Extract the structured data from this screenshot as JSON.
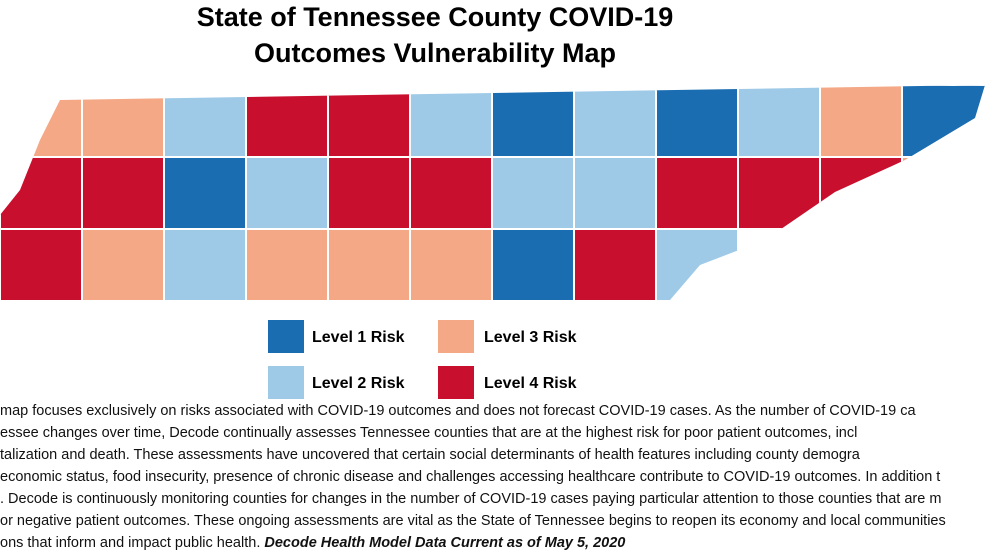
{
  "title": [
    "State of Tennessee County COVID-19",
    "Outcomes Vulnerability Map"
  ],
  "legend": [
    {
      "label": "Level 1 Risk",
      "color": "#1b6db2"
    },
    {
      "label": "Level 2 Risk",
      "color": "#9ecae8"
    },
    {
      "label": "Level 3 Risk",
      "color": "#f4a886"
    },
    {
      "label": "Level 4 Risk",
      "color": "#c8102e"
    }
  ],
  "paragraph": [
    "map focuses exclusively on risks associated with COVID-19 outcomes and does not forecast COVID-19 cases. As the number of COVID-19 ca",
    "essee changes over time, Decode continually assesses Tennessee counties that are at the highest risk for poor patient outcomes, incl",
    "talization and death. These assessments have uncovered that certain social determinants of health features including county demogra",
    "economic status, food insecurity, presence of chronic disease and challenges accessing healthcare contribute to COVID-19 outcomes. In addition t",
    ". Decode is continuously monitoring counties for changes in the number of COVID-19 cases paying particular attention to those counties that are m",
    "or negative patient outcomes. These ongoing assessments are vital as the State of Tennessee begins to reopen its economy and local communities",
    "ons that inform and impact public health."
  ],
  "footnote": "Decode Health Model Data Current as of May 5, 2020"
}
